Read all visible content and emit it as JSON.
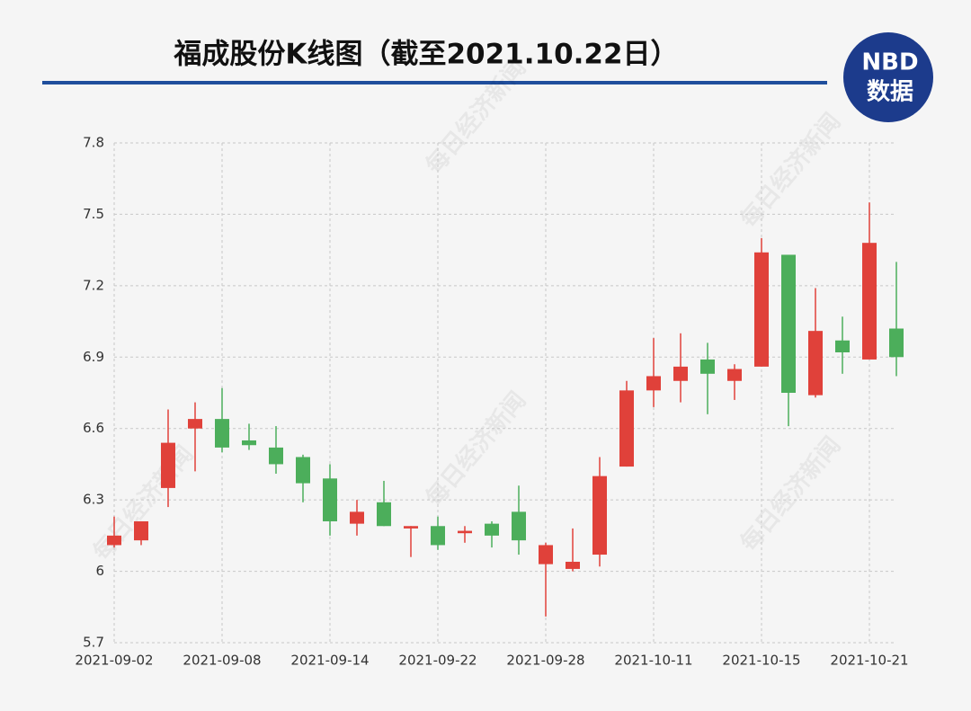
{
  "chart_data": {
    "type": "candlestick",
    "title": "福成股份K线图（截至2021.10.22日）",
    "logo": {
      "top": "NBD",
      "bottom": "数据"
    },
    "watermark": "每日经济新闻",
    "categories": [
      "2021-09-02",
      null,
      null,
      null,
      "2021-09-08",
      null,
      null,
      null,
      "2021-09-14",
      null,
      null,
      null,
      "2021-09-22",
      null,
      null,
      null,
      "2021-09-28",
      null,
      null,
      null,
      "2021-10-11",
      null,
      null,
      null,
      "2021-10-15",
      null,
      null,
      null,
      "2021-10-21",
      null
    ],
    "open": [
      6.11,
      6.13,
      6.35,
      6.6,
      6.64,
      6.55,
      6.52,
      6.48,
      6.39,
      6.2,
      6.29,
      6.18,
      6.19,
      6.16,
      6.2,
      6.25,
      6.03,
      6.01,
      6.07,
      6.44,
      6.76,
      6.8,
      6.89,
      6.8,
      6.86,
      7.33,
      6.74,
      6.97,
      6.89,
      7.02
    ],
    "high": [
      6.23,
      6.21,
      6.68,
      6.71,
      6.77,
      6.62,
      6.61,
      6.49,
      6.45,
      6.3,
      6.38,
      6.19,
      6.23,
      6.19,
      6.21,
      6.36,
      6.12,
      6.18,
      6.48,
      6.8,
      6.98,
      7.0,
      6.96,
      6.87,
      7.4,
      7.33,
      7.19,
      7.07,
      7.55,
      7.3
    ],
    "low": [
      6.1,
      6.11,
      6.27,
      6.42,
      6.5,
      6.51,
      6.41,
      6.29,
      6.15,
      6.15,
      6.19,
      6.06,
      6.09,
      6.12,
      6.1,
      6.07,
      5.81,
      6.0,
      6.02,
      6.44,
      6.69,
      6.71,
      6.66,
      6.72,
      6.86,
      6.61,
      6.73,
      6.83,
      6.89,
      6.82
    ],
    "close": [
      6.15,
      6.21,
      6.54,
      6.64,
      6.52,
      6.53,
      6.45,
      6.37,
      6.21,
      6.25,
      6.19,
      6.19,
      6.11,
      6.17,
      6.15,
      6.13,
      6.11,
      6.04,
      6.4,
      6.76,
      6.82,
      6.86,
      6.83,
      6.85,
      7.34,
      6.75,
      7.01,
      6.92,
      7.38,
      6.9
    ],
    "up_color": "#e0413a",
    "down_color": "#4cae5b",
    "ylim": [
      5.7,
      7.8
    ],
    "yticks": [
      5.7,
      6,
      6.3,
      6.6,
      6.9,
      7.2,
      7.5,
      7.8
    ],
    "grid": true
  }
}
